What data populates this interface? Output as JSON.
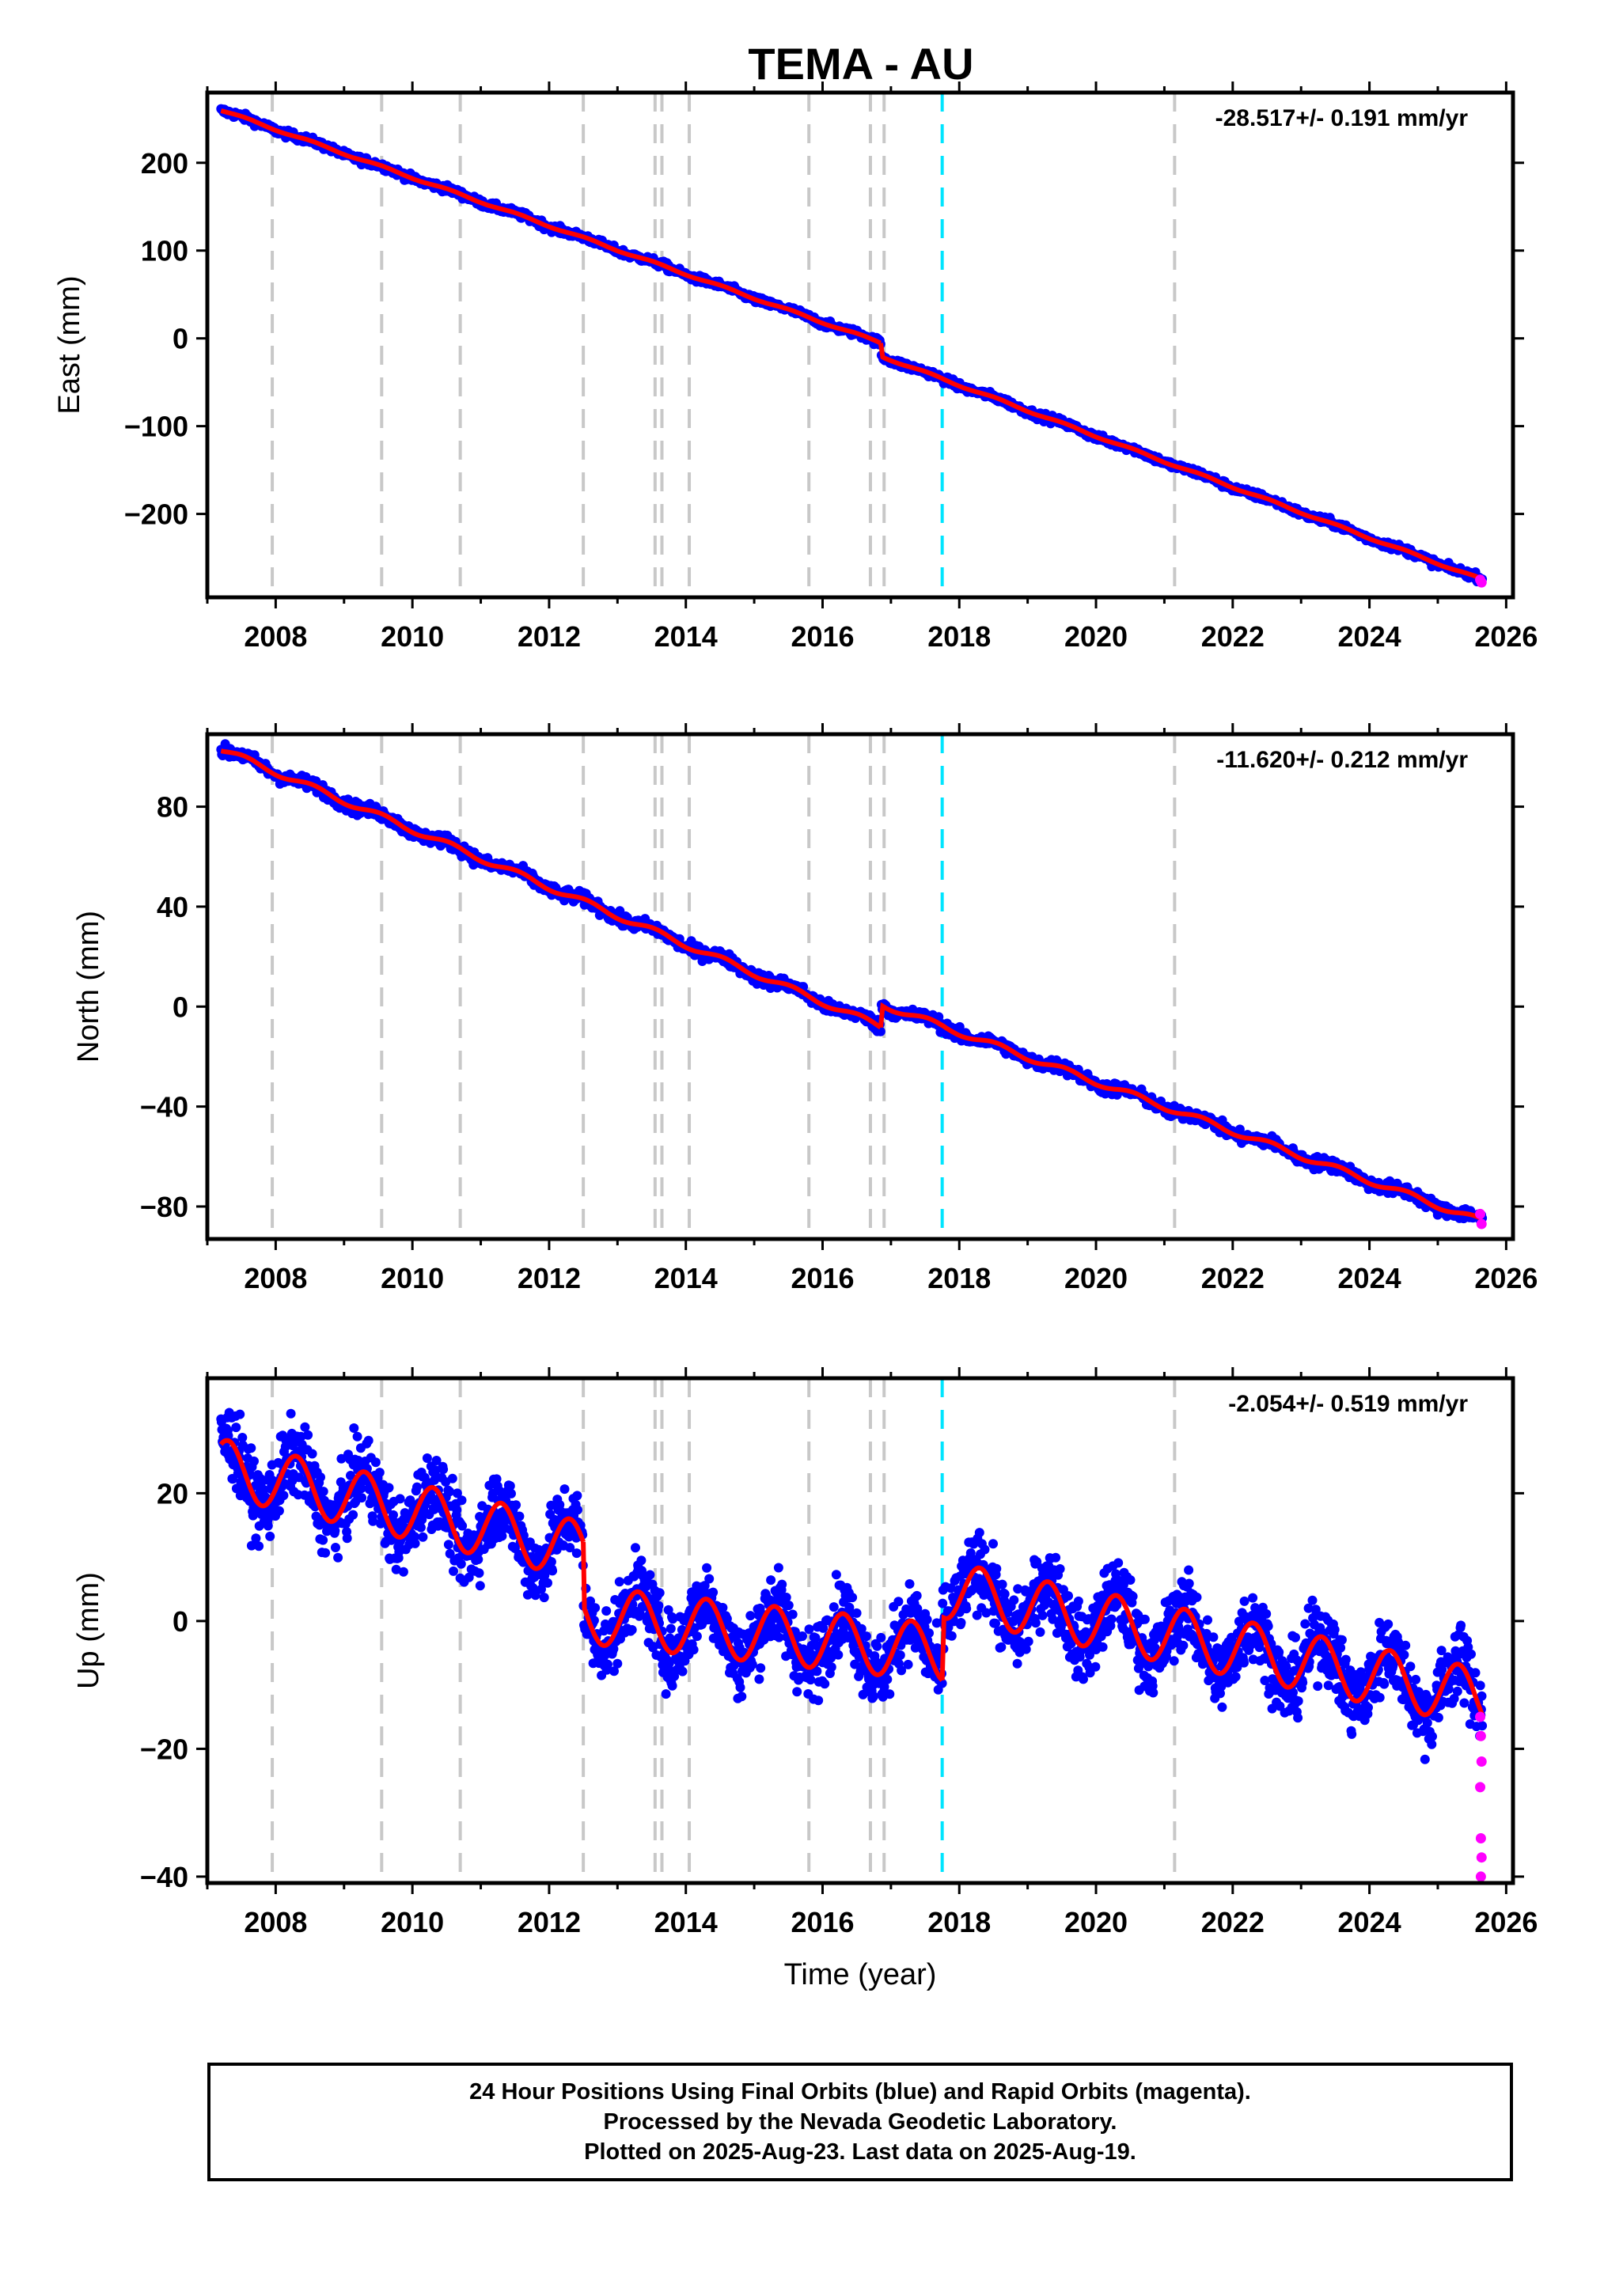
{
  "title": "TEMA - AU",
  "chart_data": [
    {
      "type": "scatter",
      "name": "east",
      "ylabel": "East (mm)",
      "xlim": [
        2007,
        2026.1
      ],
      "ylim": [
        -295,
        280
      ],
      "x_ticks": [
        2008,
        2010,
        2012,
        2014,
        2016,
        2018,
        2020,
        2022,
        2024,
        2026
      ],
      "y_ticks": [
        {
          "value": 200,
          "label": "200"
        },
        {
          "value": 100,
          "label": "100"
        },
        {
          "value": 0,
          "label": "0"
        },
        {
          "value": -100,
          "label": "−100"
        },
        {
          "value": -200,
          "label": "−200"
        }
      ],
      "rate_label": "-28.517+/- 0.191 mm/yr",
      "fit_segments": [
        {
          "x": [
            2007.2,
            2016.85
          ],
          "y": [
            260,
            -5
          ]
        },
        {
          "x": [
            2016.85,
            2025.65
          ],
          "y": [
            -20,
            -275
          ]
        }
      ],
      "noise_mm": 3.0,
      "rapid_points": [
        {
          "x": 2025.62,
          "y": -275
        },
        {
          "x": 2025.64,
          "y": -278
        }
      ]
    },
    {
      "type": "scatter",
      "name": "north",
      "ylabel": "North (mm)",
      "xlim": [
        2007,
        2026.1
      ],
      "ylim": [
        -93,
        109
      ],
      "x_ticks": [
        2008,
        2010,
        2012,
        2014,
        2016,
        2018,
        2020,
        2022,
        2024,
        2026
      ],
      "y_ticks": [
        {
          "value": 80,
          "label": "80"
        },
        {
          "value": 40,
          "label": "40"
        },
        {
          "value": 0,
          "label": "0"
        },
        {
          "value": -40,
          "label": "−40"
        },
        {
          "value": -80,
          "label": "−80"
        }
      ],
      "rate_label": "-11.620+/- 0.212 mm/yr",
      "fit_segments": [
        {
          "x": [
            2007.2,
            2016.85
          ],
          "y": [
            103,
            -8
          ]
        },
        {
          "x": [
            2016.85,
            2025.65
          ],
          "y": [
            1,
            -86
          ]
        }
      ],
      "noise_mm": 1.8,
      "rapid_points": [
        {
          "x": 2025.62,
          "y": -83
        },
        {
          "x": 2025.64,
          "y": -87
        }
      ]
    },
    {
      "type": "scatter",
      "name": "up",
      "ylabel": "Up (mm)",
      "xlabel": "Time (year)",
      "xlim": [
        2007,
        2026.1
      ],
      "ylim": [
        -41,
        38
      ],
      "x_ticks": [
        2008,
        2010,
        2012,
        2014,
        2016,
        2018,
        2020,
        2022,
        2024,
        2026
      ],
      "y_ticks": [
        {
          "value": 20,
          "label": "20"
        },
        {
          "value": 0,
          "label": "0"
        },
        {
          "value": -20,
          "label": "−20"
        },
        {
          "value": -40,
          "label": "−40"
        }
      ],
      "rate_label": "-2.054+/- 0.519 mm/yr",
      "fit_segments": [
        {
          "x": [
            2007.2,
            2012.5
          ],
          "y": [
            24,
            11
          ]
        },
        {
          "x": [
            2012.5,
            2017.75
          ],
          "y": [
            1,
            -5
          ]
        },
        {
          "x": [
            2017.75,
            2025.65
          ],
          "y": [
            5,
            -12
          ]
        }
      ],
      "seasonal_amplitude_mm": 4.5,
      "noise_mm": 4.0,
      "rapid_points": [
        {
          "x": 2025.62,
          "y": -15
        },
        {
          "x": 2025.63,
          "y": -18
        },
        {
          "x": 2025.64,
          "y": -22
        },
        {
          "x": 2025.62,
          "y": -26
        },
        {
          "x": 2025.63,
          "y": -34
        },
        {
          "x": 2025.64,
          "y": -37
        },
        {
          "x": 2025.63,
          "y": -40
        }
      ]
    }
  ],
  "gray_events": [
    2007.95,
    2009.55,
    2010.7,
    2012.5,
    2013.55,
    2013.65,
    2014.05,
    2015.8,
    2016.7,
    2016.9,
    2021.15
  ],
  "cyan_event": 2017.75,
  "colors": {
    "final_orbits": "#0000ff",
    "rapid_orbits": "#ff00ff",
    "fit_line": "#ff0000",
    "equipment_change": "#c8c8c8",
    "earthquake": "#00e5ff"
  },
  "footer": {
    "line1": "24 Hour Positions Using Final Orbits (blue) and Rapid Orbits (magenta).",
    "line2": "Processed by the Nevada Geodetic Laboratory.",
    "line3": "Plotted on 2025-Aug-23. Last data on 2025-Aug-19."
  }
}
